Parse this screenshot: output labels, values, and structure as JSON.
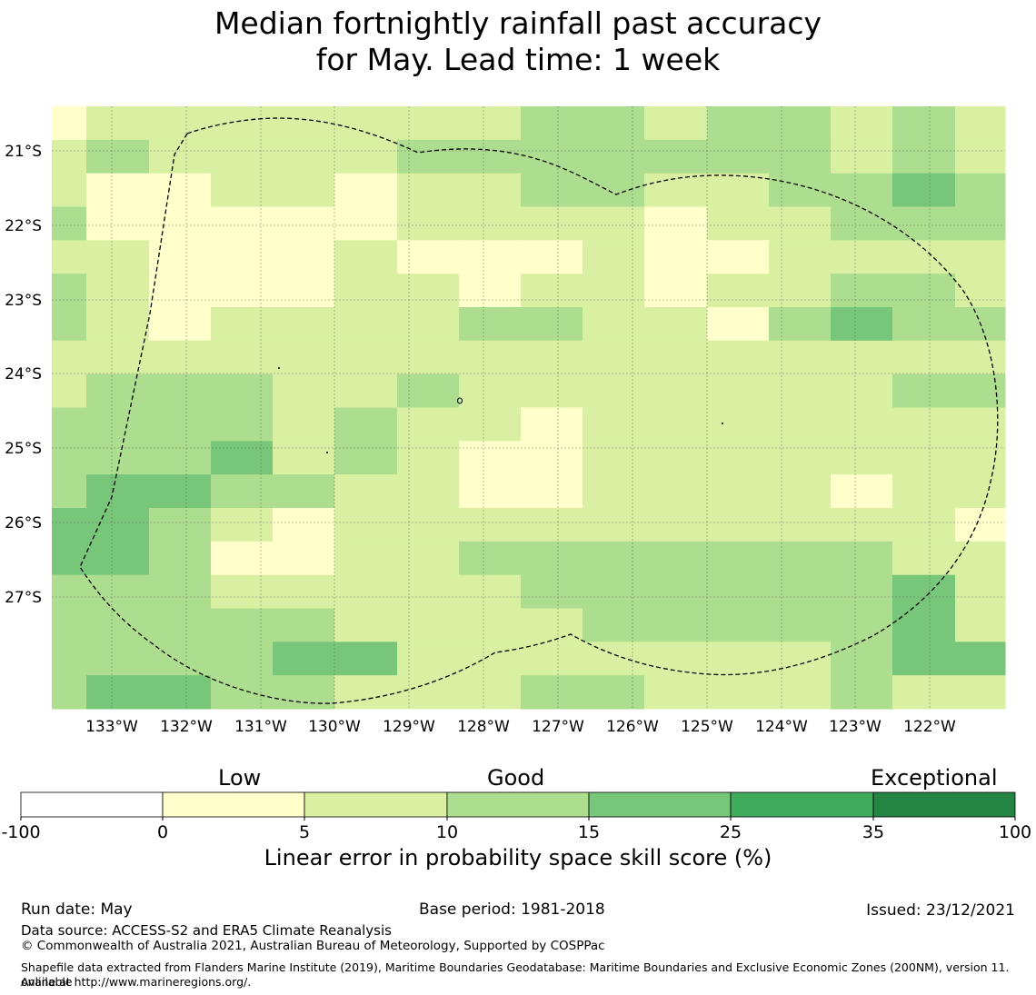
{
  "title_line1": "Median fortnightly rainfall past accuracy",
  "title_line2": "for May. Lead time: 1 week",
  "map": {
    "lon_labels": [
      "133°W",
      "132°W",
      "131°W",
      "130°W",
      "129°W",
      "128°W",
      "127°W",
      "126°W",
      "125°W",
      "124°W",
      "123°W",
      "122°W"
    ],
    "lat_labels": [
      "21°S",
      "22°S",
      "23°S",
      "24°S",
      "25°S",
      "26°S",
      "27°S"
    ],
    "cell_colors": [
      "#ffffcc",
      "#d9f0a3",
      "#addd8e",
      "#78c679"
    ],
    "grid": [
      "0111111122122121",
      "1211112222222121",
      "1001101122112232",
      "2000001111011222",
      "1100010001001111",
      "2100011011011221",
      "2101111221102322",
      "1111111111111111",
      "1222112111111122",
      "2222121101111111",
      "2223121001111111",
      "2332211001111011",
      "3321011111111110",
      "3320011222222211",
      "2221111122222231",
      "2222211112222231",
      "2222331111111233",
      "2332211122111211"
    ],
    "eez_name": "EEZ boundary"
  },
  "colorbar": {
    "categories": [
      "Low",
      "Good",
      "Exceptional"
    ],
    "ticks": [
      "-100",
      "0",
      "5",
      "10",
      "15",
      "25",
      "35",
      "100"
    ],
    "colors": [
      "#ffffff",
      "#ffffcc",
      "#d9f0a3",
      "#addd8e",
      "#78c679",
      "#41ab5d",
      "#238443"
    ],
    "label": "Linear error in probability space skill score (%)"
  },
  "footer": {
    "run_date": "Run date: May",
    "base_period": "Base period: 1981-2018",
    "issued": "Issued: 23/12/2021",
    "data_source": "Data source: ACCESS-S2 and ERA5 Climate Reanalysis",
    "copyright": "© Commonwealth of Australia 2021, Australian Bureau of Meteorology, Supported by COSPPac",
    "shapefile_line1": "Shapefile data extracted from Flanders Marine Institute (2019), Maritime Boundaries Geodatabase: Maritime Boundaries and Exclusive Economic Zones (200NM), version 11. Available",
    "shapefile_line2": "online at http://www.marineregions.org/."
  }
}
